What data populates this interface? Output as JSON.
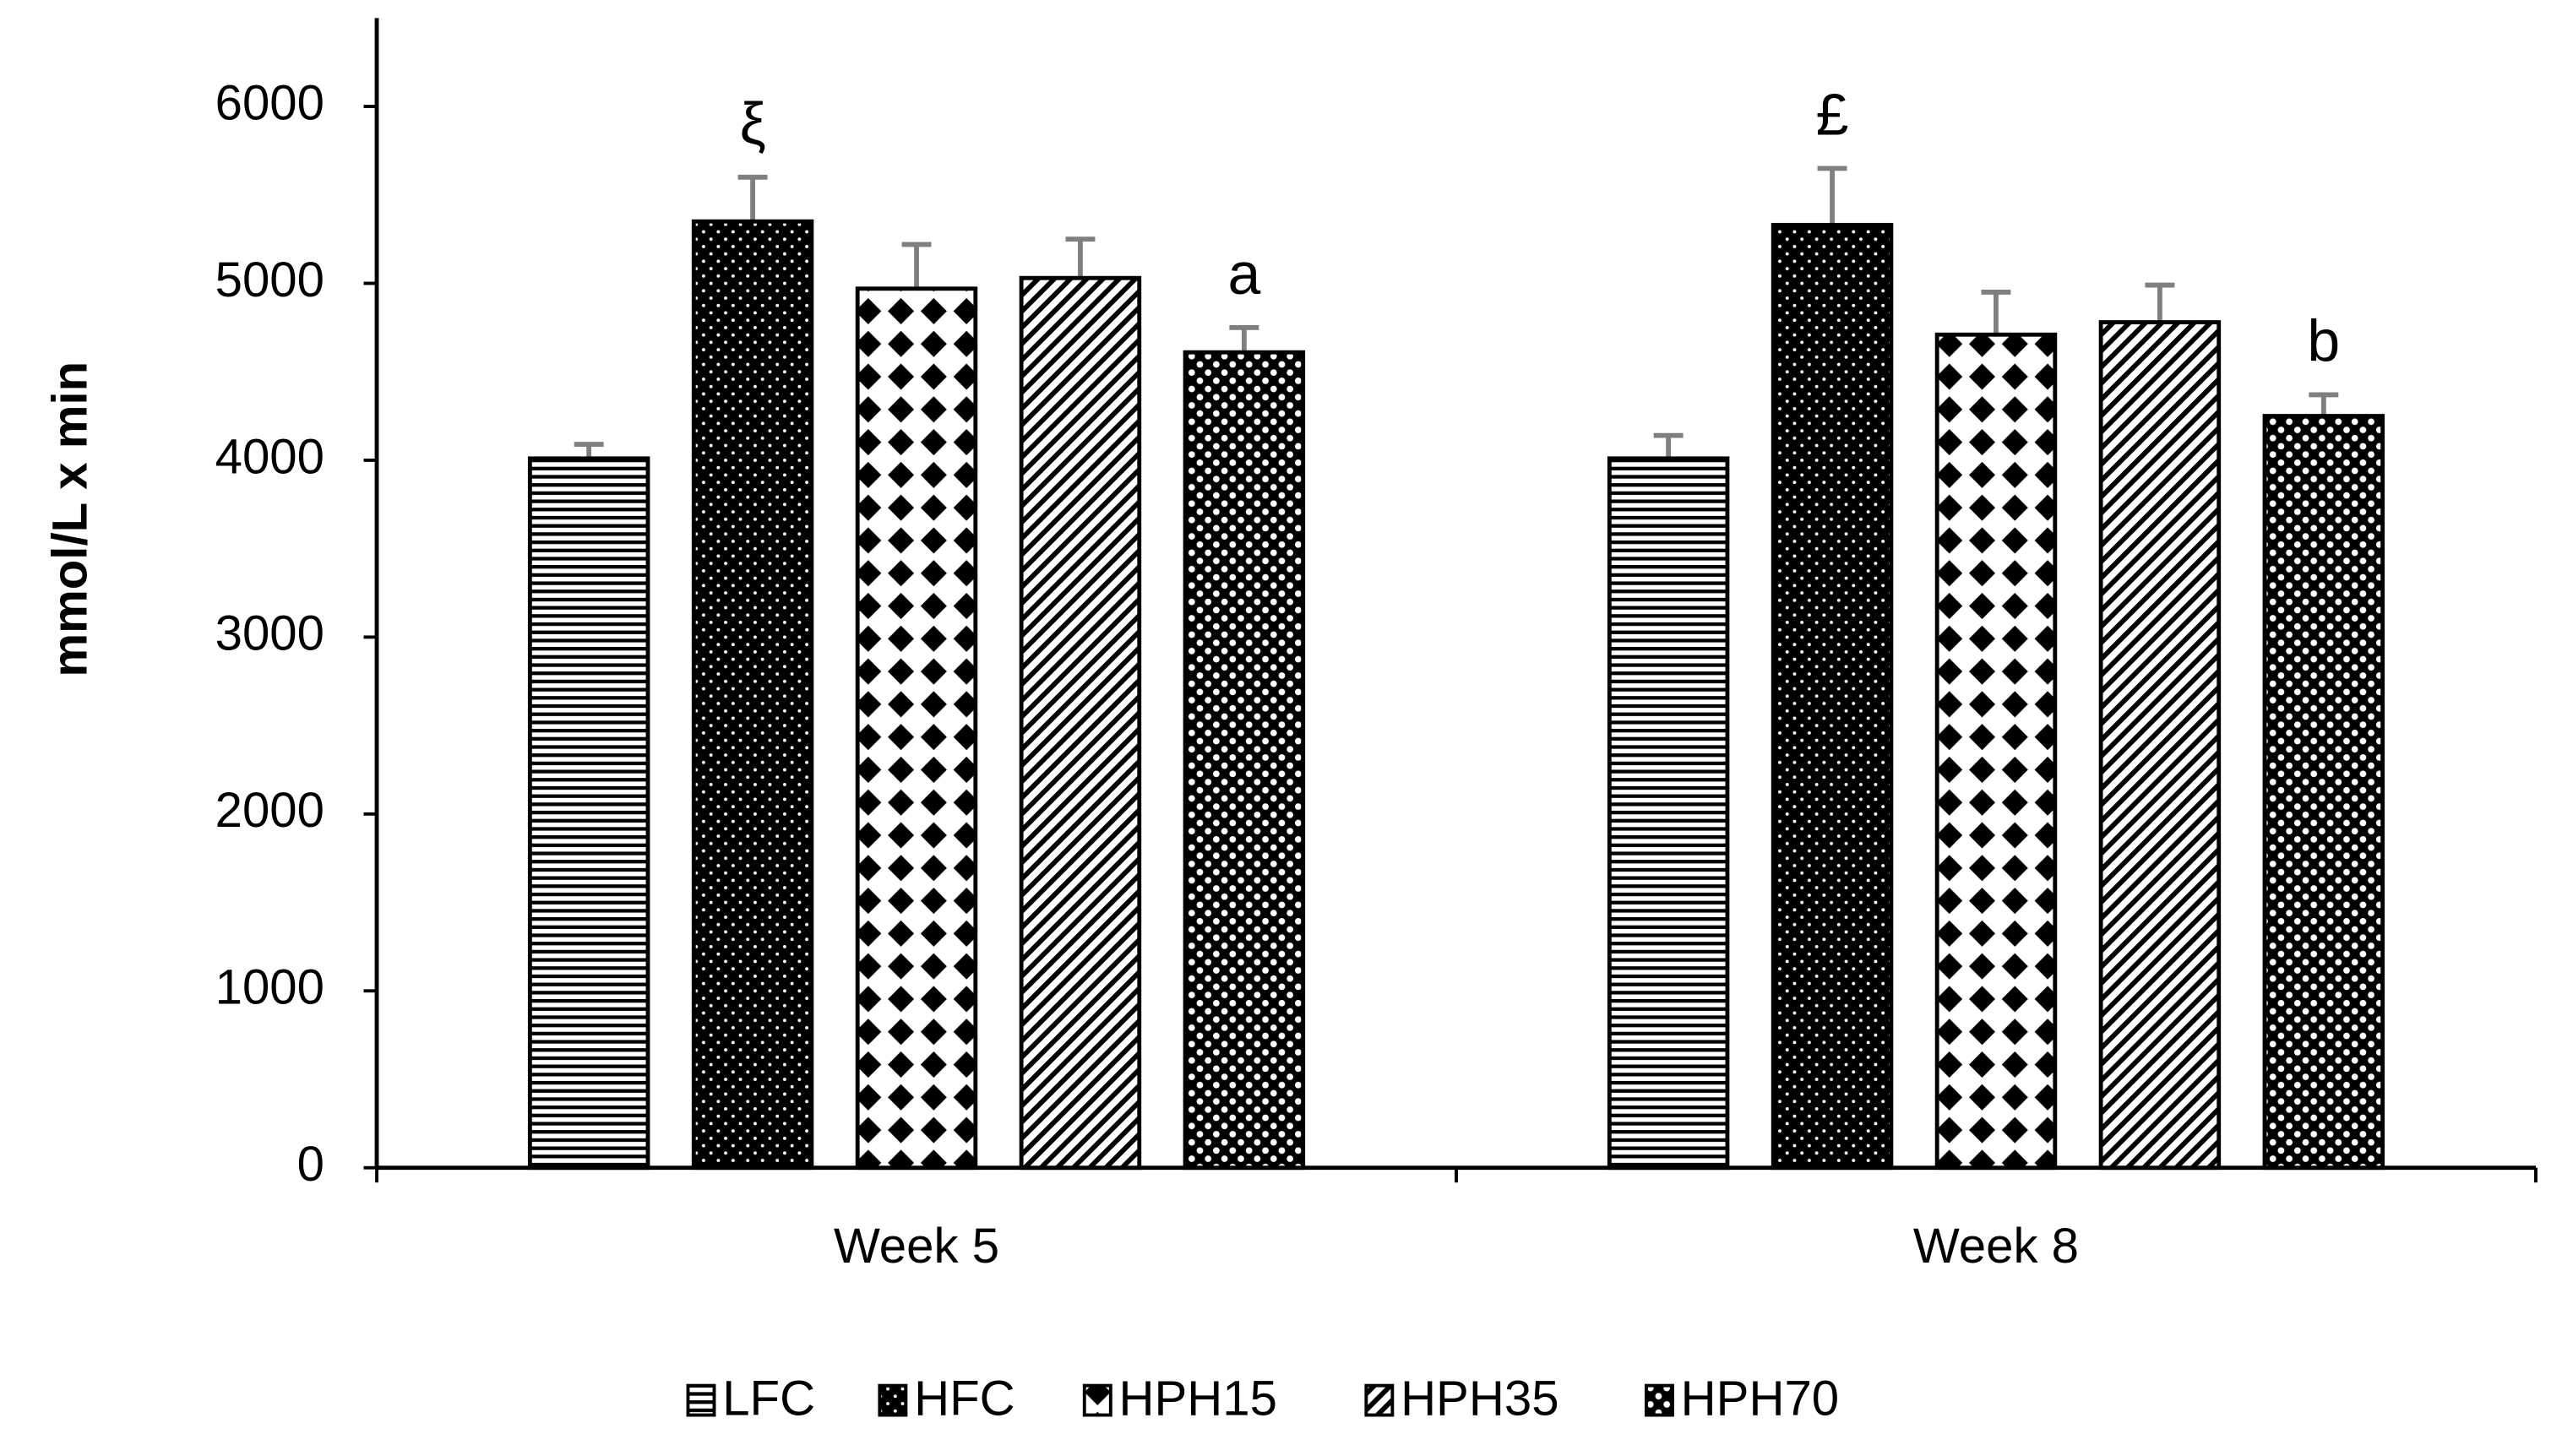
{
  "chart_data": {
    "type": "bar",
    "y_label": "mmol/L x min",
    "categories": [
      "Week 5",
      "Week 8"
    ],
    "ylim": [
      0,
      6500
    ],
    "yticks": [
      0,
      1000,
      2000,
      3000,
      4000,
      5000,
      6000
    ],
    "series": [
      {
        "name": "LFC",
        "color": "#000000",
        "pattern": "horizontal",
        "values": [
          4010,
          4010
        ],
        "errors": [
          80,
          130
        ]
      },
      {
        "name": "HFC",
        "color": "#000000",
        "pattern": "dots",
        "values": [
          5350,
          5330
        ],
        "errors": [
          250,
          320
        ],
        "annotations": [
          "ξ",
          "£"
        ]
      },
      {
        "name": "HPH15",
        "color": "#000000",
        "pattern": "diamonds",
        "values": [
          4970,
          4710
        ],
        "errors": [
          250,
          240
        ]
      },
      {
        "name": "HPH35",
        "color": "#000000",
        "pattern": "diagonal",
        "values": [
          5030,
          4780
        ],
        "errors": [
          220,
          210
        ]
      },
      {
        "name": "HPH70",
        "color": "#000000",
        "pattern": "checker",
        "values": [
          4610,
          4250
        ],
        "errors": [
          140,
          120
        ],
        "annotations": [
          "a",
          "b"
        ]
      }
    ],
    "error_color": "#7f7f7f"
  }
}
